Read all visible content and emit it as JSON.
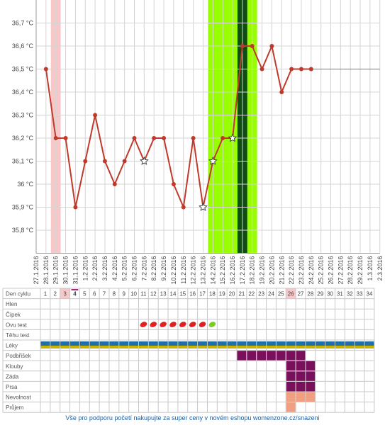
{
  "chart_data": {
    "type": "line",
    "y_ticks": [
      "35,8 °C",
      "35,9 °C",
      "36 °C",
      "36,1 °C",
      "36,2 °C",
      "36,3 °C",
      "36,4 °C",
      "36,5 °C",
      "36,6 °C",
      "36,7 °C"
    ],
    "ylim": [
      35.7,
      36.8
    ],
    "x_dates": [
      "27.1.2016",
      "28.1.2016",
      "29.1.2016",
      "30.1.2016",
      "31.1.2016",
      "1.2.2016",
      "2.2.2016",
      "3.2.2016",
      "4.2.2016",
      "5.2.2016",
      "6.2.2016",
      "7.2.2016",
      "8.2.2016",
      "9.2.2016",
      "10.2.2016",
      "11.2.2016",
      "12.2.2016",
      "13.2.2016",
      "14.2.2016",
      "15.2.2016",
      "16.2.2016",
      "17.2.2016",
      "18.2.2016",
      "19.2.2016",
      "20.2.2016",
      "21.2.2016",
      "22.2.2016",
      "23.2.2016",
      "24.2.2016",
      "25.2.2016",
      "26.2.2016",
      "27.2.2016",
      "28.2.2016",
      "29.2.2016",
      "1.3.2016",
      "2.3.2016"
    ],
    "series": [
      {
        "points": [
          {
            "x": "28.1.2016",
            "y": 36.5
          },
          {
            "x": "29.1.2016",
            "y": 36.2
          },
          {
            "x": "30.1.2016",
            "y": 36.2
          },
          {
            "x": "31.1.2016",
            "y": 35.9
          },
          {
            "x": "1.2.2016",
            "y": 36.1
          },
          {
            "x": "2.2.2016",
            "y": 36.3
          },
          {
            "x": "3.2.2016",
            "y": 36.1
          },
          {
            "x": "4.2.2016",
            "y": 36.0
          },
          {
            "x": "5.2.2016",
            "y": 36.1
          },
          {
            "x": "6.2.2016",
            "y": 36.2
          },
          {
            "x": "7.2.2016",
            "y": 36.1,
            "star": true
          },
          {
            "x": "8.2.2016",
            "y": 36.2
          },
          {
            "x": "9.2.2016",
            "y": 36.2
          },
          {
            "x": "10.2.2016",
            "y": 36.0
          },
          {
            "x": "11.2.2016",
            "y": 35.9
          },
          {
            "x": "12.2.2016",
            "y": 36.2
          },
          {
            "x": "13.2.2016",
            "y": 35.9,
            "star": true
          },
          {
            "x": "14.2.2016",
            "y": 36.1,
            "star": true
          },
          {
            "x": "15.2.2016",
            "y": 36.2
          },
          {
            "x": "16.2.2016",
            "y": 36.2,
            "star": true
          },
          {
            "x": "17.2.2016",
            "y": 36.6
          },
          {
            "x": "18.2.2016",
            "y": 36.6
          },
          {
            "x": "19.2.2016",
            "y": 36.5
          },
          {
            "x": "20.2.2016",
            "y": 36.6
          },
          {
            "x": "21.2.2016",
            "y": 36.4
          },
          {
            "x": "22.2.2016",
            "y": 36.5
          },
          {
            "x": "23.2.2016",
            "y": 36.5
          },
          {
            "x": "24.2.2016",
            "y": 36.5
          }
        ],
        "projection_to": {
          "x": "2.3.2016",
          "y": 36.5
        },
        "color": "#c0392b"
      }
    ],
    "bands": [
      {
        "from": "28.1.2016",
        "to": "29.1.2016",
        "color": "#f8c8c8"
      },
      {
        "from": "13.2.2016",
        "to": "18.2.2016",
        "color": "#99ff00"
      },
      {
        "from": "16.2.2016",
        "to": "17.2.2016",
        "color": "#0f4d14"
      }
    ]
  },
  "table": {
    "header_label": "Den cyklu",
    "days": [
      1,
      2,
      3,
      4,
      5,
      6,
      7,
      8,
      9,
      10,
      11,
      12,
      13,
      14,
      15,
      16,
      17,
      18,
      19,
      20,
      21,
      22,
      23,
      24,
      25,
      26,
      27,
      28,
      29,
      30,
      31,
      32,
      33,
      34
    ],
    "highlight_days": [
      3,
      26
    ],
    "current_day": 4,
    "rows": [
      {
        "label": "Hlen",
        "cells": []
      },
      {
        "label": "Čípek",
        "cells": []
      },
      {
        "label": "Ovu test",
        "cells": [
          {
            "days": [
              11,
              12,
              13,
              14,
              15,
              16,
              17
            ],
            "kind": "ovu-red"
          },
          {
            "days": [
              18
            ],
            "kind": "ovu-green"
          }
        ]
      },
      {
        "label": "Těhu test",
        "cells": []
      },
      {
        "label": "Léky",
        "cells": [
          {
            "days": [
              1,
              2,
              3,
              4,
              5,
              6,
              7,
              8,
              9,
              10,
              11,
              12,
              13,
              14,
              15,
              16,
              17,
              18,
              19,
              20,
              21,
              22,
              23,
              24,
              25,
              26,
              27,
              28,
              29,
              30,
              31,
              32,
              33,
              34
            ],
            "kind": "meds"
          }
        ]
      },
      {
        "label": "Podbřišek",
        "cells": [
          {
            "days": [
              21,
              22,
              23,
              24,
              25,
              26,
              27
            ],
            "kind": "purple"
          }
        ]
      },
      {
        "label": "Klouby",
        "cells": [
          {
            "days": [
              26,
              27,
              28
            ],
            "kind": "purple"
          }
        ]
      },
      {
        "label": "Záda",
        "cells": [
          {
            "days": [
              26,
              27,
              28
            ],
            "kind": "purple"
          }
        ]
      },
      {
        "label": "Prsa",
        "cells": [
          {
            "days": [
              26,
              27,
              28
            ],
            "kind": "purple"
          }
        ]
      },
      {
        "label": "Nevolnost",
        "cells": [
          {
            "days": [
              26,
              27,
              28
            ],
            "kind": "salmon"
          }
        ]
      },
      {
        "label": "Průjem",
        "cells": [
          {
            "days": [
              26
            ],
            "kind": "salmon"
          }
        ]
      }
    ]
  },
  "colors": {
    "purple": "#7a0f5c",
    "salmon": "#f0a080",
    "meds_blue": "#1f6fa8",
    "meds_yellow": "#c8b400",
    "ovu_red": "#e02020",
    "ovu_green": "#7acc20",
    "current_day_mark": "#b02080",
    "highlight_cell": "#f8c8c8"
  },
  "footer": {
    "text": "Vše pro podporu početí nakupujte za super ceny v novém eshopu womenzone.cz/snazeni"
  }
}
